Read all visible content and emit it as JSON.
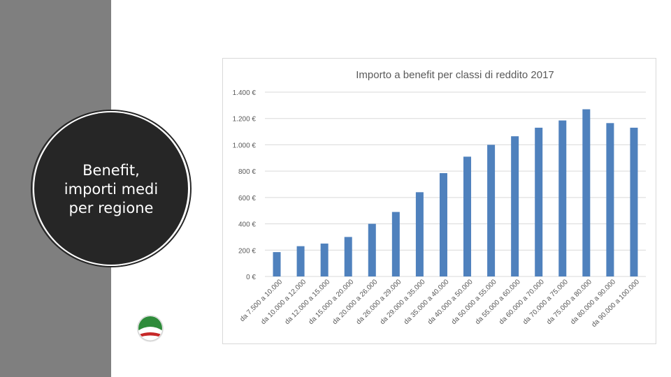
{
  "slide": {
    "title_lines": [
      "Benefit,",
      "importi medi",
      "per regione"
    ]
  },
  "colors": {
    "side_band": "#7f7f7f",
    "circle": "#262626",
    "bar": "#4f81bd",
    "logo_green": "#2e8b3a",
    "logo_red": "#c62828"
  },
  "logo": {
    "icon": "tricolor-party-logo-icon"
  },
  "chart_data": {
    "type": "bar",
    "title": "Importo a benefit per classi di reddito  2017",
    "xlabel": "",
    "ylabel": "",
    "ylim": [
      0,
      1400
    ],
    "yticks": [
      0,
      200,
      400,
      600,
      800,
      1000,
      1200,
      1400
    ],
    "ytick_labels": [
      "0 €",
      "200 €",
      "400 €",
      "600 €",
      "800 €",
      "1.000 €",
      "1.200 €",
      "1.400 €"
    ],
    "grid": true,
    "legend": "none",
    "categories": [
      "da 7.500 a 10.000",
      "da 10.000 a 12.000",
      "da 12.000 a 15.000",
      "da 15.000 a 20.000",
      "da 20.000 a 26.000",
      "da 26.000 a 29.000",
      "da 29.000 a 35.000",
      "da 35.000 a 40.000",
      "da 40.000 a 50.000",
      "da 50.000 a 55.000",
      "da 55.000 a 60.000",
      "da 60.000 a 70.000",
      "da 70.000 a 75.000",
      "da 75.000 a 80.000",
      "da 80.000 a 90.000",
      "da 90.000 a 100.000"
    ],
    "values": [
      185,
      230,
      250,
      300,
      400,
      490,
      640,
      785,
      910,
      1000,
      1065,
      1130,
      1185,
      1270,
      1165,
      1130
    ]
  }
}
